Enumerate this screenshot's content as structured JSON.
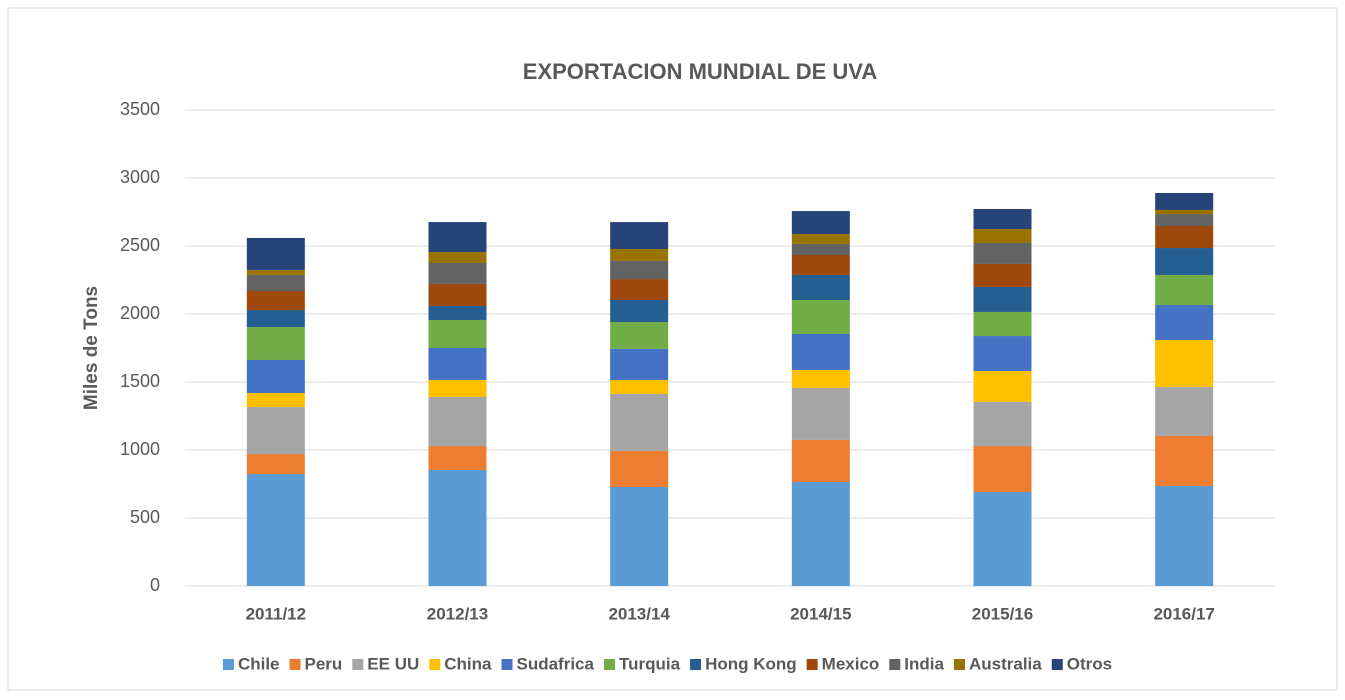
{
  "chart_data": {
    "type": "stacked_bar",
    "title": "EXPORTACION MUNDIAL DE UVA",
    "y_label": "Miles de Tons",
    "categories": [
      "2011/12",
      "2012/13",
      "2013/14",
      "2014/15",
      "2015/16",
      "2016/17"
    ],
    "series": [
      {
        "name": "Chile",
        "color": "#5b9bd5",
        "values": [
          823,
          853,
          728,
          765,
          691,
          735
        ]
      },
      {
        "name": "Peru",
        "color": "#ed7d31",
        "values": [
          147,
          176,
          265,
          309,
          338,
          368
        ]
      },
      {
        "name": "EE UU",
        "color": "#a5a5a5",
        "values": [
          346,
          361,
          419,
          382,
          324,
          360
        ]
      },
      {
        "name": "China",
        "color": "#ffc000",
        "values": [
          103,
          125,
          103,
          132,
          228,
          346
        ]
      },
      {
        "name": "Sudafrica",
        "color": "#4472c4",
        "values": [
          243,
          235,
          228,
          265,
          257,
          257
        ]
      },
      {
        "name": "Turquia",
        "color": "#70ad47",
        "values": [
          242,
          206,
          198,
          250,
          177,
          221
        ]
      },
      {
        "name": "Hong Kong",
        "color": "#255e91",
        "values": [
          125,
          103,
          162,
          184,
          184,
          198
        ]
      },
      {
        "name": "Mexico",
        "color": "#9e480e",
        "values": [
          140,
          162,
          154,
          147,
          169,
          162
        ]
      },
      {
        "name": "India",
        "color": "#636363",
        "values": [
          118,
          154,
          133,
          81,
          154,
          88
        ]
      },
      {
        "name": "Australia",
        "color": "#997300",
        "values": [
          37,
          81,
          88,
          73,
          103,
          30
        ]
      },
      {
        "name": "Otros",
        "color": "#264478",
        "values": [
          235,
          220,
          198,
          169,
          147,
          125
        ]
      }
    ],
    "ylim": [
      0,
      3500
    ],
    "yticks": [
      0,
      500,
      1000,
      1500,
      2000,
      2500,
      3000,
      3500
    ],
    "grid": true,
    "legend": "bottom"
  }
}
